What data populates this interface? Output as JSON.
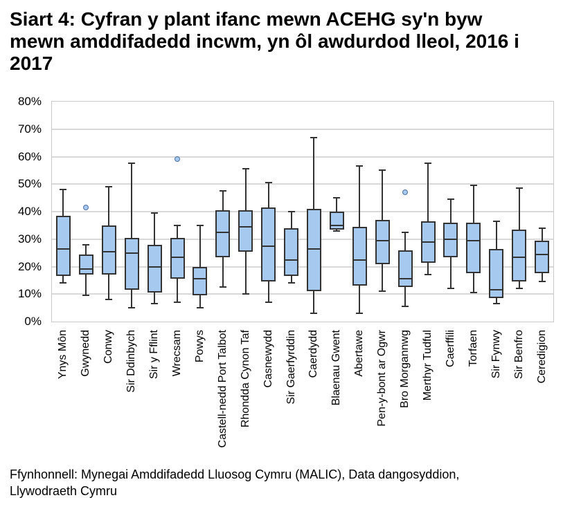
{
  "title": "Siart 4: Cyfran y plant ifanc mewn ACEHG sy'n byw mewn amddifadedd incwm, yn ôl awdurdod lleol, 2016 i 2017",
  "source": "Ffynhonnell: Mynegai Amddifadedd Lluosog Cymru (MALIC), Data dangosyddion, Llywodraeth Cymru",
  "colors": {
    "box_fill": "#a6caef",
    "line": "#333333",
    "gridline": "#d9d9d9",
    "axis_frame": "#c9c9c9",
    "outlier_stroke": "#4d6d9a"
  },
  "chart_data": {
    "type": "boxplot",
    "title": "Siart 4: Cyfran y plant ifanc mewn ACEHG sy'n byw mewn amddifadedd incwm, yn ôl awdurdod lleol, 2016 i 2017",
    "xlabel": "",
    "ylabel": "",
    "ylim": [
      0,
      80
    ],
    "grid": true,
    "ytick_step": 10,
    "yticks": [
      {
        "value": 80,
        "label": "80%"
      },
      {
        "value": 70,
        "label": "70%"
      },
      {
        "value": 60,
        "label": "60%"
      },
      {
        "value": 50,
        "label": "50%"
      },
      {
        "value": 40,
        "label": "40%"
      },
      {
        "value": 30,
        "label": "30%"
      },
      {
        "value": 20,
        "label": "20%"
      },
      {
        "value": 10,
        "label": "10%"
      },
      {
        "value": 0,
        "label": "0%"
      }
    ],
    "categories": [
      "Ynys Môn",
      "Gwynedd",
      "Conwy",
      "Sir Ddinbych",
      "Sir y Fflint",
      "Wrecsam",
      "Powys",
      "Castell-nedd Port Talbot",
      "Rhondda Cynon Taf",
      "Casnewydd",
      "Sir Gaerfyrddin",
      "Caerdydd",
      "Blaenau Gwent",
      "Abertawe",
      "Pen-y-bont ar Ogwr",
      "Bro Morgannwg",
      "Merthyr Tudful",
      "Caerffili",
      "Torfaen",
      "Sir Fynwy",
      "Sir Benfro",
      "Ceredigion"
    ],
    "boxes": [
      {
        "min": 14,
        "q1": 16.5,
        "median": 26.5,
        "q3": 38.5,
        "max": 48,
        "outliers": []
      },
      {
        "min": 9.5,
        "q1": 17,
        "median": 19,
        "q3": 24.5,
        "max": 28,
        "outliers": [
          41.5
        ]
      },
      {
        "min": 8,
        "q1": 17,
        "median": 25.5,
        "q3": 35,
        "max": 49,
        "outliers": []
      },
      {
        "min": 5,
        "q1": 11.5,
        "median": 25,
        "q3": 30.5,
        "max": 57.5,
        "outliers": []
      },
      {
        "min": 6.5,
        "q1": 10.5,
        "median": 20,
        "q3": 28,
        "max": 39.5,
        "outliers": []
      },
      {
        "min": 7,
        "q1": 15.5,
        "median": 23.5,
        "q3": 30.5,
        "max": 35,
        "outliers": [
          59
        ]
      },
      {
        "min": 5,
        "q1": 9.5,
        "median": 15.5,
        "q3": 20,
        "max": 35,
        "outliers": []
      },
      {
        "min": 12.5,
        "q1": 23.5,
        "median": 32.5,
        "q3": 40.5,
        "max": 47.5,
        "outliers": []
      },
      {
        "min": 10,
        "q1": 25.5,
        "median": 34.5,
        "q3": 40.5,
        "max": 55.5,
        "outliers": []
      },
      {
        "min": 7,
        "q1": 14.5,
        "median": 27.5,
        "q3": 41.5,
        "max": 50.5,
        "outliers": []
      },
      {
        "min": 14,
        "q1": 16.5,
        "median": 22.5,
        "q3": 34,
        "max": 40,
        "outliers": []
      },
      {
        "min": 3,
        "q1": 11,
        "median": 26.5,
        "q3": 41,
        "max": 67,
        "outliers": []
      },
      {
        "min": 33,
        "q1": 33.5,
        "median": 35,
        "q3": 40,
        "max": 45,
        "outliers": []
      },
      {
        "min": 3,
        "q1": 13,
        "median": 22.5,
        "q3": 34.5,
        "max": 56.5,
        "outliers": []
      },
      {
        "min": 11,
        "q1": 21,
        "median": 29.5,
        "q3": 37,
        "max": 55,
        "outliers": []
      },
      {
        "min": 5.5,
        "q1": 12.5,
        "median": 15.5,
        "q3": 26,
        "max": 32.5,
        "outliers": [
          47
        ]
      },
      {
        "min": 17,
        "q1": 21.5,
        "median": 29,
        "q3": 36.5,
        "max": 57.5,
        "outliers": []
      },
      {
        "min": 12,
        "q1": 23.5,
        "median": 30,
        "q3": 36,
        "max": 44.5,
        "outliers": []
      },
      {
        "min": 10.5,
        "q1": 17.5,
        "median": 29.5,
        "q3": 36,
        "max": 49.5,
        "outliers": []
      },
      {
        "min": 6.5,
        "q1": 8.5,
        "median": 11.5,
        "q3": 26.5,
        "max": 36.5,
        "outliers": []
      },
      {
        "min": 12,
        "q1": 14.5,
        "median": 23.5,
        "q3": 33.5,
        "max": 48.5,
        "outliers": []
      },
      {
        "min": 14.5,
        "q1": 17.5,
        "median": 24.5,
        "q3": 29.5,
        "max": 34,
        "outliers": []
      }
    ],
    "legend": null,
    "grid_lines": "horizontal"
  }
}
